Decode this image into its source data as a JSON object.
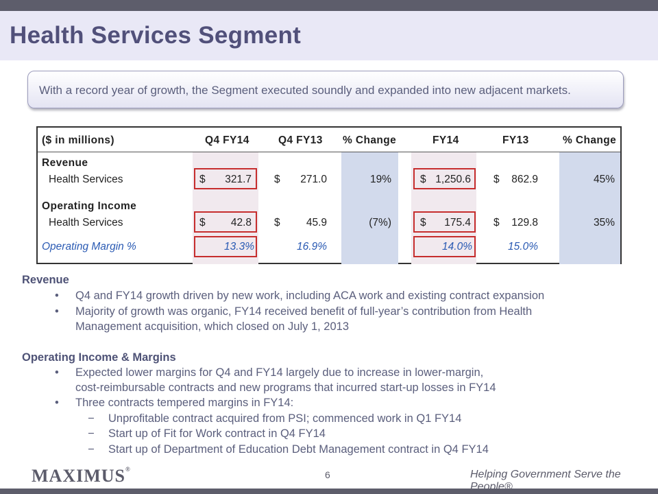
{
  "title": "Health Services Segment",
  "callout": "With a record year of growth, the Segment executed soundly and expanded into new adjacent markets.",
  "table": {
    "units_label": "($ in millions)",
    "headers": [
      "Q4 FY14",
      "Q4 FY13",
      "% Change",
      "FY14",
      "FY13",
      "% Change"
    ],
    "revenue_label": "Revenue",
    "revenue_row": {
      "label": "Health Services",
      "q4fy14_cur": "$",
      "q4fy14": "321.7",
      "q4fy13_cur": "$",
      "q4fy13": "271.0",
      "q4_change": "19%",
      "fy14_cur": "$",
      "fy14": "1,250.6",
      "fy13_cur": "$",
      "fy13": "862.9",
      "fy_change": "45%"
    },
    "opinc_label": "Operating Income",
    "opinc_row": {
      "label": "Health Services",
      "q4fy14_cur": "$",
      "q4fy14": "42.8",
      "q4fy13_cur": "$",
      "q4fy13": "45.9",
      "q4_change": "(7%)",
      "fy14_cur": "$",
      "fy14": "175.4",
      "fy13_cur": "$",
      "fy13": "129.8",
      "fy_change": "35%"
    },
    "margin_row": {
      "label": "Operating Margin %",
      "q4fy14": "13.3%",
      "q4fy13": "16.9%",
      "fy14": "14.0%",
      "fy13": "15.0%"
    }
  },
  "sections": {
    "revenue": {
      "heading": "Revenue",
      "bullets": [
        "Q4 and FY14 growth driven by new work, including ACA work and existing contract expansion",
        "Majority of growth was organic, FY14 received benefit of full-year’s contribution from Health",
        "Management acquisition, which closed on July 1, 2013"
      ]
    },
    "opinc": {
      "heading": "Operating Income & Margins",
      "bullets": [
        "Expected lower margins for Q4 and FY14 largely due to increase in lower-margin,",
        "cost-reimbursable contracts and new programs that incurred start-up losses in FY14",
        "Three contracts tempered margins in FY14:"
      ],
      "sub_bullets": [
        "Unprofitable contract acquired from PSI; commenced work in Q1 FY14",
        "Start up of Fit for Work contract in Q4 FY14",
        "Start up of Department of Education Debt Management contract in Q4 FY14"
      ]
    }
  },
  "bullet_glyph": "•",
  "dash_glyph": "−",
  "footer": {
    "logo": "MAXIMUS",
    "page_number": "6",
    "tagline": "Helping Government Serve the People®"
  },
  "colors": {
    "title": "#51507a",
    "title_band": "#e9e8f6",
    "shade_pink": "#f1e9ee",
    "shade_blue": "#d2daec",
    "highlight_red": "#c62d2d",
    "margin_text": "#2a5ab3"
  }
}
